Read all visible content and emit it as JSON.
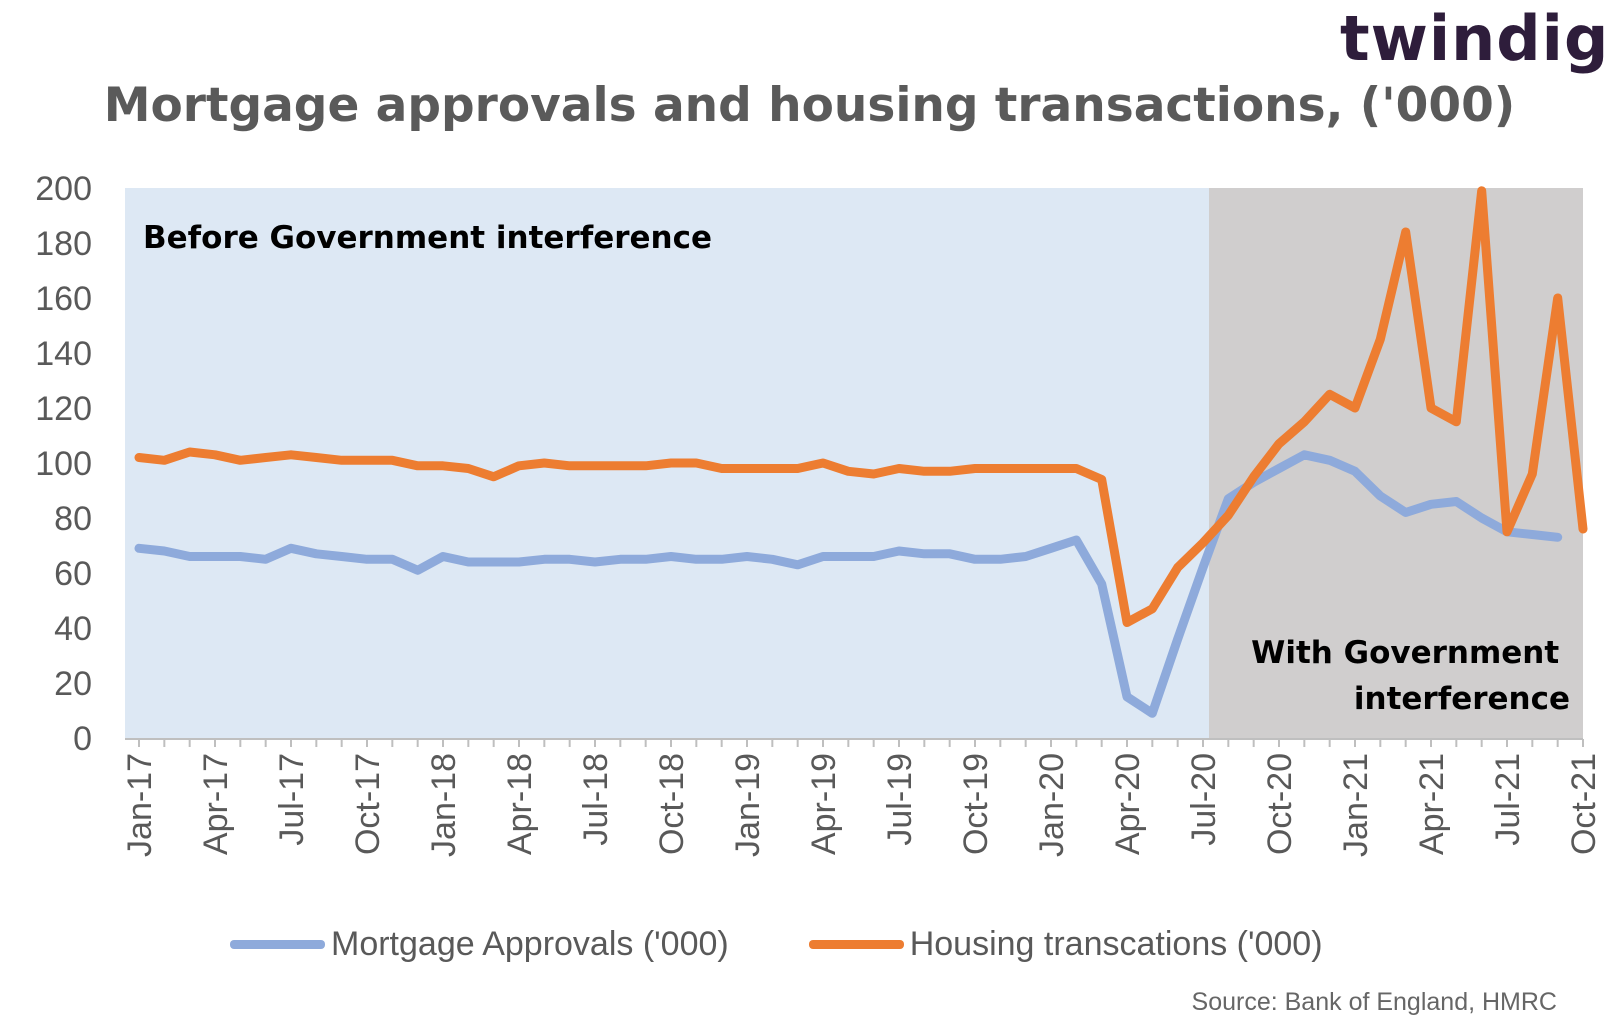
{
  "logo": "twindig",
  "title": "Mortgage approvals and housing transactions, ('000)",
  "source": "Source: Bank of England, HMRC",
  "colors": {
    "before_bg": "#dde8f4",
    "after_bg": "#d0cece",
    "approvals": "#8eaadb",
    "transactions": "#ed7d31",
    "axis_text": "#595959"
  },
  "chart_data": {
    "type": "line",
    "title": "Mortgage approvals and housing transactions, ('000)",
    "x": [
      "Jan-17",
      "Feb-17",
      "Mar-17",
      "Apr-17",
      "May-17",
      "Jun-17",
      "Jul-17",
      "Aug-17",
      "Sep-17",
      "Oct-17",
      "Nov-17",
      "Dec-17",
      "Jan-18",
      "Feb-18",
      "Mar-18",
      "Apr-18",
      "May-18",
      "Jun-18",
      "Jul-18",
      "Aug-18",
      "Sep-18",
      "Oct-18",
      "Nov-18",
      "Dec-18",
      "Jan-19",
      "Feb-19",
      "Mar-19",
      "Apr-19",
      "May-19",
      "Jun-19",
      "Jul-19",
      "Aug-19",
      "Sep-19",
      "Oct-19",
      "Nov-19",
      "Dec-19",
      "Jan-20",
      "Feb-20",
      "Mar-20",
      "Apr-20",
      "May-20",
      "Jun-20",
      "Jul-20",
      "Aug-20",
      "Sep-20",
      "Oct-20",
      "Nov-20",
      "Dec-20",
      "Jan-21",
      "Feb-21",
      "Mar-21",
      "Apr-21",
      "May-21",
      "Jun-21",
      "Jul-21",
      "Aug-21",
      "Sep-21",
      "Oct-21"
    ],
    "tick_labels": [
      "Jan-17",
      "Apr-17",
      "Jul-17",
      "Oct-17",
      "Jan-18",
      "Apr-18",
      "Jul-18",
      "Oct-18",
      "Jan-19",
      "Apr-19",
      "Jul-19",
      "Oct-19",
      "Jan-20",
      "Apr-20",
      "Jul-20",
      "Oct-20",
      "Jan-21",
      "Apr-21",
      "Jul-21",
      "Oct-21"
    ],
    "ylim": [
      0,
      200
    ],
    "yticks": [
      0,
      20,
      40,
      60,
      80,
      100,
      120,
      140,
      160,
      180,
      200
    ],
    "grid": false,
    "legend_position": "bottom",
    "regions": [
      {
        "label": "Before Government interference",
        "from": "Jan-17",
        "to": "Jul-20"
      },
      {
        "label": "With Government interference",
        "from": "Jul-20",
        "to": "Oct-21"
      }
    ],
    "series": [
      {
        "name": "Mortgage Approvals ('000)",
        "values": [
          69,
          68,
          66,
          66,
          66,
          65,
          69,
          67,
          66,
          65,
          65,
          61,
          66,
          64,
          64,
          64,
          65,
          65,
          64,
          65,
          65,
          66,
          65,
          65,
          66,
          65,
          63,
          66,
          66,
          66,
          68,
          67,
          67,
          65,
          65,
          66,
          69,
          72,
          56,
          15,
          9,
          36,
          62,
          87,
          93,
          98,
          103,
          101,
          97,
          88,
          82,
          85,
          86,
          80,
          75,
          74,
          73,
          null
        ]
      },
      {
        "name": "Housing transcations ('000)",
        "values": [
          102,
          101,
          104,
          103,
          101,
          102,
          103,
          102,
          101,
          101,
          101,
          99,
          99,
          98,
          95,
          99,
          100,
          99,
          99,
          99,
          99,
          100,
          100,
          98,
          98,
          98,
          98,
          100,
          97,
          96,
          98,
          97,
          97,
          98,
          98,
          98,
          98,
          98,
          94,
          42,
          47,
          62,
          71,
          81,
          95,
          107,
          115,
          125,
          120,
          145,
          184,
          120,
          115,
          199,
          75,
          96,
          160,
          76
        ]
      }
    ]
  }
}
